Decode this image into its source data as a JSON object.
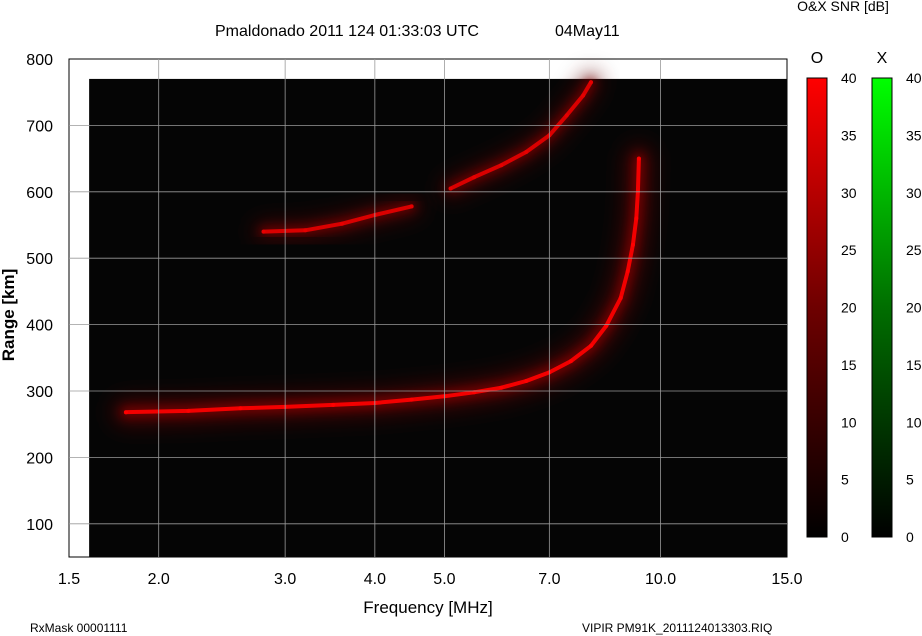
{
  "header": {
    "title": "Pmaldonado 2011 124 01:33:03 UTC",
    "date": "04May11",
    "colorbar_caption": "O&X SNR [dB]"
  },
  "footer": {
    "left": "RxMask 00001111",
    "right": "VIPIR  PM91K_2011124013303.RIQ"
  },
  "chart_data": {
    "type": "heatmap",
    "title": "Pmaldonado 2011 124 01:33:03 UTC",
    "xlabel": "Frequency [MHz]",
    "ylabel": "Range [km]",
    "x_scale": "log",
    "xlim": [
      1.5,
      15.0
    ],
    "ylim": [
      50,
      800
    ],
    "grid": true,
    "x_ticks": [
      1.5,
      2.0,
      3.0,
      4.0,
      5.0,
      7.0,
      10.0,
      15.0
    ],
    "x_tick_labels": [
      "1.5",
      "2.0",
      "3.0",
      "4.0",
      "5.0",
      "7.0",
      "10.0",
      "15.0"
    ],
    "y_ticks": [
      100,
      200,
      300,
      400,
      500,
      600,
      700,
      800
    ],
    "y_tick_labels": [
      "100",
      "200",
      "300",
      "400",
      "500",
      "600",
      "700",
      "800"
    ],
    "data_extent": {
      "freq_min": 1.6,
      "freq_max": 15.0,
      "range_min": 50,
      "range_max": 770
    },
    "background_color": "#050505",
    "colorbars": [
      {
        "name": "O",
        "min": 0,
        "max": 40,
        "ticks": [
          0,
          5,
          10,
          15,
          20,
          25,
          30,
          35,
          40
        ],
        "tick_labels": [
          "0",
          "5",
          "10",
          "15",
          "20",
          "25",
          "30",
          "35",
          "40"
        ],
        "color": "#ff0000"
      },
      {
        "name": "X",
        "min": 0,
        "max": 40,
        "ticks": [
          0,
          5,
          10,
          15,
          20,
          25,
          30,
          35,
          40
        ],
        "tick_labels": [
          "0",
          "5",
          "10",
          "15",
          "20",
          "25",
          "30",
          "35",
          "40"
        ],
        "color": "#00ff00"
      }
    ],
    "series": [
      {
        "mode": "O",
        "snr_db": 30,
        "points": [
          [
            1.8,
            268
          ],
          [
            2.2,
            270
          ],
          [
            2.6,
            274
          ],
          [
            3.0,
            276
          ],
          [
            3.5,
            279
          ],
          [
            4.0,
            282
          ],
          [
            4.5,
            287
          ],
          [
            5.0,
            292
          ],
          [
            5.5,
            298
          ],
          [
            6.0,
            305
          ],
          [
            6.5,
            315
          ],
          [
            7.0,
            328
          ],
          [
            7.5,
            345
          ],
          [
            8.0,
            368
          ],
          [
            8.4,
            398
          ],
          [
            8.8,
            440
          ],
          [
            9.0,
            480
          ],
          [
            9.15,
            520
          ],
          [
            9.25,
            560
          ],
          [
            9.3,
            600
          ],
          [
            9.33,
            650
          ]
        ]
      },
      {
        "mode": "O",
        "snr_db": 26,
        "points": [
          [
            2.8,
            540
          ],
          [
            3.2,
            542
          ],
          [
            3.6,
            552
          ],
          [
            4.0,
            565
          ],
          [
            4.5,
            578
          ]
        ]
      },
      {
        "mode": "O",
        "snr_db": 26,
        "points": [
          [
            5.1,
            605
          ],
          [
            5.5,
            622
          ],
          [
            6.0,
            640
          ],
          [
            6.5,
            660
          ],
          [
            7.0,
            685
          ],
          [
            7.4,
            715
          ],
          [
            7.8,
            745
          ],
          [
            8.0,
            765
          ]
        ]
      }
    ]
  }
}
